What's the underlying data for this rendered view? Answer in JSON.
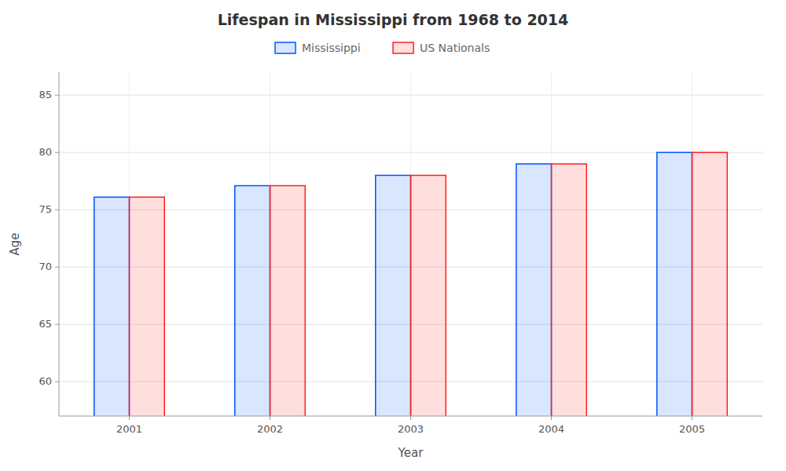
{
  "chart_data": {
    "type": "bar",
    "title": "Lifespan in Mississippi from 1968 to 2014",
    "x_label": "Year",
    "y_label": "Age",
    "categories": [
      "2001",
      "2002",
      "2003",
      "2004",
      "2005"
    ],
    "series": [
      {
        "name": "Mississippi",
        "color": "#0055FF",
        "values": [
          76.1,
          77.1,
          78.0,
          79.0,
          80.0
        ]
      },
      {
        "name": "US Nationals",
        "color": "#FF2222",
        "values": [
          76.1,
          77.1,
          78.0,
          79.0,
          80.0
        ]
      }
    ],
    "ylim": [
      57,
      87
    ],
    "yticks": [
      60,
      65,
      70,
      75,
      80,
      85
    ],
    "grid": true,
    "legend": "top"
  }
}
